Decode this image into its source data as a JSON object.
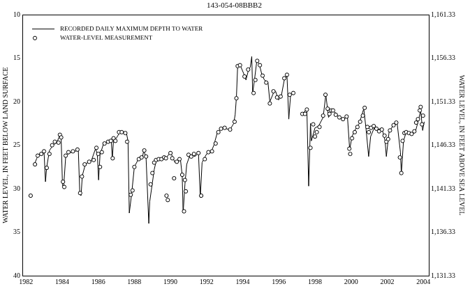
{
  "chart_data": {
    "type": "line",
    "title": "143-054-08BBB2",
    "y_label": "WATER LEVEL, IN FEET BELOW LAND SURFACE",
    "y2_label": "WATER LEVEL, IN FEET ABOVE SEA LEVEL",
    "xlim": [
      1981.8,
      2004.3
    ],
    "xticks": [
      1982,
      1984,
      1986,
      1988,
      1990,
      1992,
      1994,
      1996,
      1998,
      2000,
      2002,
      2004
    ],
    "ylim": [
      40,
      10
    ],
    "yticks": [
      10,
      15,
      20,
      25,
      30,
      35,
      40
    ],
    "y2lim": [
      1131.33,
      1161.33
    ],
    "y2ticks": [
      {
        "value": 1131.33,
        "label": "1,131.33"
      },
      {
        "value": 1136.33,
        "label": "1,136.33"
      },
      {
        "value": 1141.33,
        "label": "1,141.33"
      },
      {
        "value": 1146.33,
        "label": "1,146.33"
      },
      {
        "value": 1151.33,
        "label": "1,151.33"
      },
      {
        "value": 1156.33,
        "label": "1,156.33"
      },
      {
        "value": 1161.33,
        "label": "1,161.33"
      }
    ],
    "grid": false,
    "legend": "upper left",
    "series": [
      {
        "name": "RECORDED DAILY MAXIMUM DEPTH TO WATER",
        "type": "line",
        "color": "#000000",
        "marker": "none",
        "line_style": "solid",
        "x": [
          1982.45,
          1982.6,
          1982.75,
          1983.0,
          1983.08,
          1983.15,
          1983.3,
          1983.5,
          1983.7,
          1983.85,
          1983.95,
          1984.02,
          1984.08,
          1984.2,
          1984.4,
          1984.7,
          1984.9,
          1984.98,
          1985.05,
          1985.12,
          1985.3,
          1985.6,
          1985.85,
          1985.95,
          1986.02,
          1986.1,
          1986.3,
          1986.6,
          1986.72,
          1986.78,
          1986.85,
          1987.0,
          1987.2,
          1987.55,
          1987.65,
          1987.72,
          1987.85,
          1988.0,
          1988.2,
          1988.45,
          1988.52,
          1988.65,
          1988.8,
          1988.85,
          1989.0,
          1989.1,
          1989.2,
          1989.5,
          1989.75,
          1990.0,
          1990.15,
          1990.25,
          1990.4,
          1990.55,
          1990.65,
          1990.7,
          1990.8,
          1990.9,
          1991.05,
          1991.2,
          1991.35,
          1991.55,
          1991.65,
          1991.75,
          1992.0,
          1992.25,
          1992.4,
          1992.6,
          1992.85,
          1993.3,
          1993.5,
          1993.58,
          1993.65,
          1993.72,
          1993.9,
          1994.1,
          1994.18,
          1994.3,
          1994.42,
          1994.5,
          1994.55,
          1994.65,
          1994.78,
          1994.92,
          1995.05,
          1995.2,
          1995.4,
          1995.5,
          1995.7,
          1995.82,
          1995.98,
          1996.12,
          1996.3,
          1996.45,
          1996.55,
          1996.65,
          1996.82,
          1997.0,
          1997.35,
          1997.55,
          1997.65,
          1997.75,
          1997.8,
          1998.0,
          1998.2,
          1998.45,
          1998.6,
          1998.75,
          1998.95,
          1999.15,
          1999.35,
          1999.55,
          1999.8,
          1999.92,
          2000.05,
          2000.2,
          2000.45,
          2000.7,
          2000.82,
          2000.97,
          2001.08,
          2001.3,
          2001.5,
          2001.7,
          2001.88,
          2001.95,
          2002.1,
          2002.3,
          2002.55,
          2002.73,
          2002.78,
          2002.9,
          2003.05,
          2003.4,
          2003.55,
          2003.72,
          2003.85,
          2003.92,
          2003.96,
          2004.05
        ],
        "values": [
          27.3,
          26.5,
          26.0,
          25.7,
          29.2,
          27.5,
          25.6,
          25.0,
          24.7,
          24.0,
          24.3,
          29.5,
          30.0,
          26.3,
          25.9,
          25.7,
          25.6,
          30.6,
          30.8,
          28.5,
          27.1,
          26.9,
          25.4,
          26.0,
          29.0,
          26.1,
          24.8,
          24.5,
          24.3,
          26.6,
          24.3,
          24.2,
          23.5,
          23.5,
          24.5,
          32.8,
          30.6,
          27.5,
          26.7,
          26.4,
          25.6,
          26.5,
          34.0,
          31.5,
          29.3,
          27.8,
          26.9,
          26.6,
          26.5,
          25.8,
          26.5,
          27.0,
          26.8,
          26.6,
          28.5,
          32.8,
          29.5,
          27.2,
          26.3,
          26.1,
          26.3,
          25.9,
          31.0,
          27.0,
          26.0,
          25.8,
          25.0,
          23.5,
          23.0,
          23.2,
          22.5,
          21.5,
          19.5,
          15.8,
          16.0,
          17.0,
          17.5,
          16.5,
          16.0,
          14.8,
          19.0,
          17.5,
          15.3,
          15.7,
          16.8,
          17.5,
          17.8,
          20.0,
          19.0,
          18.8,
          19.8,
          19.5,
          17.5,
          17.0,
          22.0,
          19.2,
          19.0,
          null,
          21.3,
          20.8,
          29.7,
          22.5,
          24.5,
          23.0,
          22.8,
          21.8,
          19.2,
          21.8,
          21.0,
          21.3,
          21.8,
          22.0,
          21.8,
          25.5,
          24.0,
          23.3,
          22.5,
          20.8,
          23.0,
          26.3,
          24.0,
          22.9,
          23.2,
          23.0,
          24.5,
          26.3,
          23.5,
          22.8,
          22.5,
          25.8,
          28.3,
          24.5,
          23.5,
          23.7,
          23.5,
          22.2,
          21.0,
          22.5,
          23.3,
          22.3
        ]
      },
      {
        "name": "WATER-LEVEL MEASUREMENT",
        "type": "scatter",
        "color": "#000000",
        "marker": "circle",
        "line_style": "none",
        "x": [
          1982.26,
          1982.5,
          1982.65,
          1982.85,
          1983.0,
          1983.15,
          1983.3,
          1983.45,
          1983.6,
          1983.8,
          1983.88,
          1983.95,
          1984.05,
          1984.12,
          1984.2,
          1984.35,
          1984.6,
          1984.85,
          1985.0,
          1985.1,
          1985.25,
          1985.5,
          1985.75,
          1985.9,
          1986.0,
          1986.1,
          1986.2,
          1986.35,
          1986.55,
          1986.7,
          1986.8,
          1986.85,
          1986.95,
          1987.15,
          1987.3,
          1987.5,
          1987.6,
          1987.8,
          1987.9,
          1988.0,
          1988.25,
          1988.4,
          1988.55,
          1988.65,
          1988.9,
          1989.0,
          1989.1,
          1989.2,
          1989.35,
          1989.5,
          1989.65,
          1989.75,
          1989.78,
          1989.85,
          1990.0,
          1990.1,
          1990.2,
          1990.35,
          1990.5,
          1990.65,
          1990.75,
          1990.8,
          1990.85,
          1991.0,
          1991.15,
          1991.3,
          1991.55,
          1991.7,
          1991.9,
          1992.1,
          1992.3,
          1992.5,
          1992.65,
          1992.8,
          1993.0,
          1993.3,
          1993.55,
          1993.65,
          1993.72,
          1993.85,
          1994.1,
          1994.3,
          1994.6,
          1994.7,
          1994.8,
          1994.95,
          1995.1,
          1995.3,
          1995.5,
          1995.7,
          1995.9,
          1996.1,
          1996.3,
          1996.45,
          1996.6,
          1996.8,
          1997.3,
          1997.45,
          1997.55,
          1997.75,
          1997.9,
          1998.0,
          1998.1,
          1998.25,
          1998.45,
          1998.58,
          1998.7,
          1998.8,
          1998.9,
          1999.0,
          1999.15,
          1999.35,
          1999.55,
          1999.75,
          1999.9,
          1999.95,
          2000.05,
          2000.2,
          2000.35,
          2000.5,
          2000.65,
          2000.75,
          2000.9,
          2000.98,
          2001.1,
          2001.25,
          2001.4,
          2001.55,
          2001.7,
          2001.85,
          2001.95,
          2002.05,
          2002.15,
          2002.35,
          2002.5,
          2002.7,
          2002.78,
          2002.85,
          2002.95,
          2003.05,
          2003.2,
          2003.35,
          2003.5,
          2003.6,
          2003.7,
          2003.8,
          2003.85,
          2003.92,
          2003.98
        ],
        "values": [
          30.8,
          27.2,
          26.2,
          26.0,
          25.7,
          27.6,
          26.0,
          25.0,
          24.6,
          24.7,
          23.8,
          24.1,
          29.2,
          29.8,
          26.2,
          25.8,
          25.7,
          25.5,
          30.5,
          28.6,
          27.2,
          26.9,
          26.7,
          25.3,
          26.0,
          27.5,
          25.8,
          24.8,
          24.6,
          24.5,
          26.5,
          24.2,
          24.5,
          23.5,
          23.5,
          23.6,
          24.6,
          30.7,
          30.2,
          27.5,
          26.6,
          26.4,
          25.6,
          26.3,
          29.5,
          28.2,
          27.0,
          26.7,
          26.6,
          26.6,
          26.4,
          26.5,
          30.8,
          31.3,
          25.9,
          26.5,
          28.8,
          26.9,
          26.6,
          28.4,
          32.6,
          29.0,
          30.3,
          26.1,
          26.3,
          26.0,
          25.9,
          30.8,
          26.6,
          25.8,
          25.7,
          24.8,
          23.5,
          23.1,
          23.0,
          23.2,
          22.3,
          19.6,
          15.9,
          15.8,
          17.1,
          16.3,
          19.0,
          17.5,
          15.3,
          15.8,
          17.0,
          17.8,
          20.2,
          18.8,
          19.5,
          19.4,
          17.3,
          16.9,
          19.2,
          19.0,
          21.4,
          21.4,
          20.9,
          25.3,
          22.6,
          24.0,
          23.5,
          22.9,
          21.6,
          19.2,
          20.8,
          21.4,
          21.0,
          21.0,
          21.5,
          21.8,
          22.0,
          21.7,
          25.4,
          26.0,
          24.2,
          23.5,
          22.9,
          22.3,
          21.6,
          20.7,
          22.9,
          23.5,
          23.0,
          22.8,
          23.1,
          23.4,
          23.2,
          23.9,
          24.6,
          24.3,
          23.3,
          22.7,
          22.4,
          26.4,
          28.2,
          24.5,
          23.6,
          23.5,
          23.6,
          23.7,
          23.4,
          22.4,
          22.0,
          21.0,
          20.6,
          22.6,
          21.6
        ]
      }
    ]
  }
}
